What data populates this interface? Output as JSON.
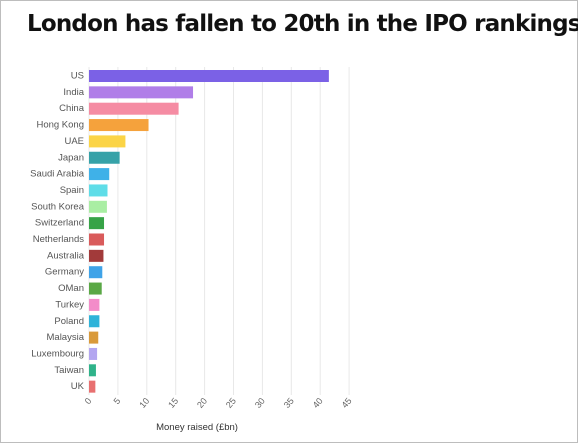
{
  "title": "London has fallen to 20th in the IPO rankings",
  "chart_data": {
    "type": "bar",
    "orientation": "horizontal",
    "title": "London has fallen to 20th in the IPO rankings",
    "xlabel": "Money raised (£bn)",
    "ylabel": "",
    "xlim": [
      0,
      45
    ],
    "xticks": [
      0,
      5,
      10,
      15,
      20,
      25,
      30,
      35,
      40,
      45
    ],
    "grid": true,
    "categories": [
      "US",
      "India",
      "China",
      "Hong Kong",
      "UAE",
      "Japan",
      "Saudi Arabia",
      "Spain",
      "South Korea",
      "Switzerland",
      "Netherlands",
      "Australia",
      "Germany",
      "OMan",
      "Turkey",
      "Poland",
      "Malaysia",
      "Luxembourg",
      "Taiwan",
      "UK"
    ],
    "values": [
      41.5,
      18.0,
      15.5,
      10.3,
      6.3,
      5.3,
      3.5,
      3.2,
      3.1,
      2.6,
      2.6,
      2.5,
      2.3,
      2.2,
      1.8,
      1.8,
      1.6,
      1.4,
      1.2,
      1.1
    ],
    "colors": [
      "#7b61e6",
      "#b07ee8",
      "#f58ca3",
      "#f5a23c",
      "#fbd446",
      "#36a2a8",
      "#3fb1e8",
      "#5fdde8",
      "#a9eea3",
      "#37a347",
      "#d95b5b",
      "#a23a3a",
      "#3fa3e8",
      "#5aa845",
      "#f38cc9",
      "#2fb3d9",
      "#d99a3a",
      "#b3a6f0",
      "#2fb38a",
      "#e87070"
    ]
  }
}
